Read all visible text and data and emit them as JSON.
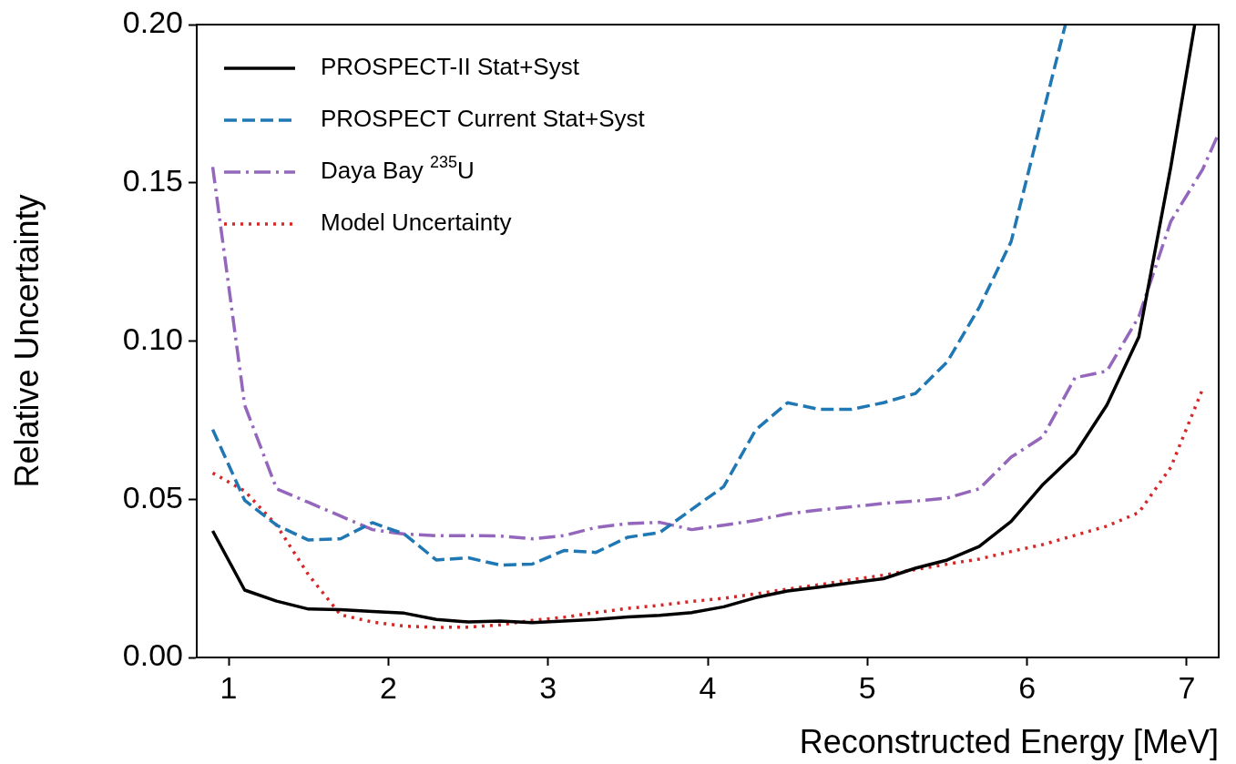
{
  "chart_data": {
    "type": "line",
    "xlabel": "Reconstructed Energy [MeV]",
    "ylabel": "Relative Uncertainty",
    "x": [
      0.9,
      1.1,
      1.3,
      1.5,
      1.7,
      1.9,
      2.1,
      2.3,
      2.5,
      2.7,
      2.9,
      3.1,
      3.3,
      3.5,
      3.7,
      3.9,
      4.1,
      4.3,
      4.5,
      4.7,
      4.9,
      5.1,
      5.3,
      5.5,
      5.7,
      5.9,
      6.1,
      6.3,
      6.5,
      6.7,
      6.9,
      7.1
    ],
    "series": [
      {
        "name": "PROSPECT-II Stat+Syst",
        "color": "#000000",
        "line_style": "solid",
        "x": [
          0.9,
          1.1,
          1.3,
          1.5,
          1.7,
          1.9,
          2.1,
          2.3,
          2.5,
          2.7,
          2.9,
          3.1,
          3.3,
          3.5,
          3.7,
          3.9,
          4.1,
          4.3,
          4.5,
          4.7,
          4.9,
          5.1,
          5.3,
          5.5,
          5.7,
          5.9,
          6.1,
          6.3,
          6.5,
          6.7,
          6.9,
          7.05
        ],
        "values": [
          0.04,
          0.0213,
          0.0178,
          0.0153,
          0.0151,
          0.0145,
          0.014,
          0.012,
          0.0112,
          0.0115,
          0.011,
          0.0115,
          0.012,
          0.0128,
          0.0133,
          0.0142,
          0.016,
          0.0189,
          0.021,
          0.0222,
          0.0236,
          0.0249,
          0.0282,
          0.0308,
          0.0351,
          0.043,
          0.0547,
          0.0643,
          0.0798,
          0.1013,
          0.155,
          0.2
        ]
      },
      {
        "name": "PROSPECT Current Stat+Syst",
        "color": "#1f77b4",
        "line_style": "dashed",
        "x": [
          0.9,
          1.1,
          1.3,
          1.5,
          1.7,
          1.9,
          2.1,
          2.3,
          2.5,
          2.7,
          2.9,
          3.1,
          3.3,
          3.5,
          3.7,
          3.9,
          4.1,
          4.3,
          4.5,
          4.7,
          4.9,
          5.1,
          5.3,
          5.5,
          5.7,
          5.9,
          6.1,
          6.24
        ],
        "values": [
          0.072,
          0.0497,
          0.0418,
          0.0371,
          0.0375,
          0.0426,
          0.039,
          0.0308,
          0.0315,
          0.0292,
          0.0295,
          0.0338,
          0.0332,
          0.038,
          0.0395,
          0.0468,
          0.054,
          0.0719,
          0.0805,
          0.0784,
          0.0784,
          0.0805,
          0.0834,
          0.0934,
          0.1106,
          0.1314,
          0.172,
          0.2
        ]
      },
      {
        "name": "Daya Bay $^{235}$U",
        "color": "#9467bd",
        "line_style": "dashdot",
        "x": [
          0.9,
          1.1,
          1.3,
          1.5,
          1.7,
          1.9,
          2.1,
          2.3,
          2.5,
          2.7,
          2.9,
          3.1,
          3.3,
          3.5,
          3.7,
          3.9,
          4.1,
          4.3,
          4.5,
          4.7,
          4.9,
          5.1,
          5.3,
          5.5,
          5.7,
          5.9,
          6.1,
          6.3,
          6.5,
          6.7,
          6.9,
          7.1,
          7.2
        ],
        "values": [
          0.155,
          0.0798,
          0.0533,
          0.049,
          0.0447,
          0.0404,
          0.039,
          0.0385,
          0.0385,
          0.0384,
          0.0375,
          0.0385,
          0.0411,
          0.0423,
          0.0427,
          0.0404,
          0.0418,
          0.0433,
          0.0454,
          0.0466,
          0.0476,
          0.0487,
          0.0494,
          0.0504,
          0.0533,
          0.0633,
          0.0698,
          0.0884,
          0.0905,
          0.1077,
          0.1378,
          0.1543,
          0.1657
        ]
      },
      {
        "name": "Model Uncertainty",
        "color": "#d62728",
        "line_style": "dotted",
        "values": [
          0.0583,
          0.0526,
          0.0418,
          0.0261,
          0.0135,
          0.0112,
          0.0099,
          0.0095,
          0.0096,
          0.0103,
          0.0117,
          0.0127,
          0.0142,
          0.0155,
          0.0165,
          0.0177,
          0.0187,
          0.0201,
          0.0216,
          0.023,
          0.0246,
          0.026,
          0.0278,
          0.0295,
          0.0311,
          0.0335,
          0.0357,
          0.0386,
          0.0415,
          0.0458,
          0.0601,
          0.0849
        ]
      }
    ],
    "xlim": [
      0.8,
      7.2
    ],
    "xticks": [
      1,
      2,
      3,
      4,
      5,
      6,
      7
    ],
    "ylim": [
      0,
      0.2
    ],
    "yticks": [
      {
        "value": 0,
        "label": "0.00"
      },
      {
        "value": 0.05,
        "label": "0.05"
      },
      {
        "value": 0.1,
        "label": "0.10"
      },
      {
        "value": 0.15,
        "label": "0.15"
      },
      {
        "value": 0.2,
        "label": "0.20"
      }
    ],
    "grid": false,
    "legend": "top left",
    "marker": "none"
  }
}
